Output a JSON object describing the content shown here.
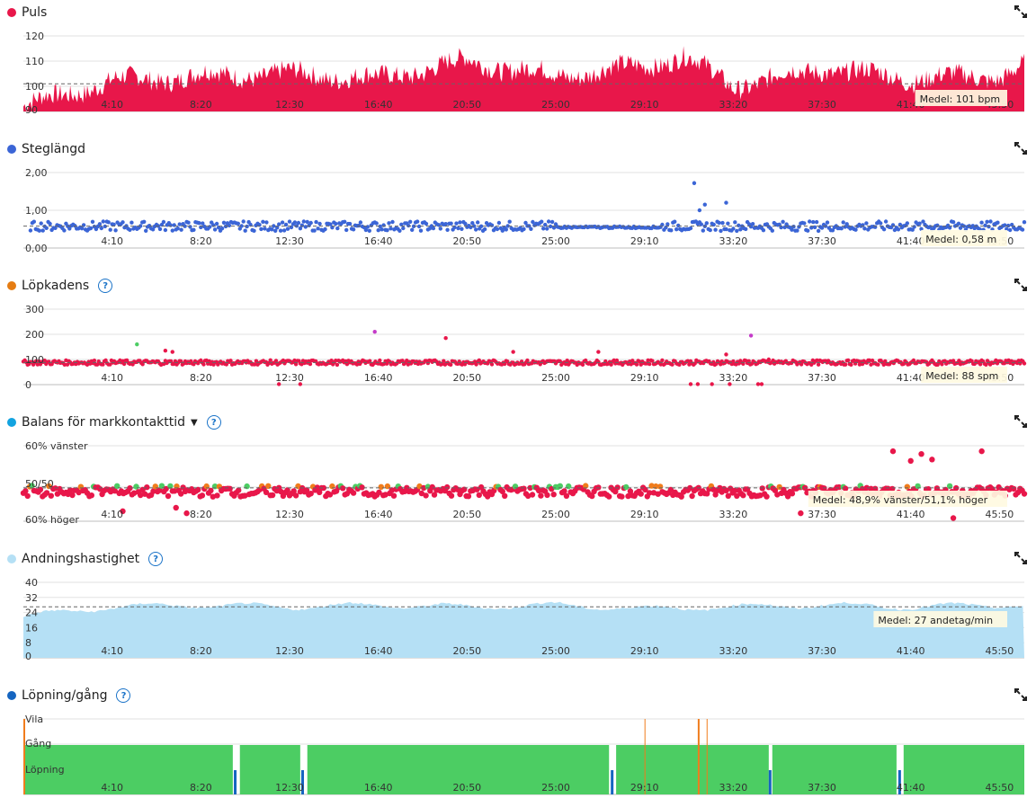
{
  "x_ticks": [
    "4:10",
    "8:20",
    "12:30",
    "16:40",
    "20:50",
    "25:00",
    "29:10",
    "33:20",
    "37:30",
    "41:40",
    "45:50"
  ],
  "colors": {
    "puls": "#e8174a",
    "steglangd": "#3b65d6",
    "lopkadens": "#e57c12",
    "balans": "#12a3e0",
    "andning": "#b5e0f5",
    "lopning": "#1565c0",
    "green": "#4ccd63",
    "orange": "#f07c1c",
    "grid": "#e2e2e2"
  },
  "panels": {
    "puls": {
      "title": "Puls",
      "avg": "Medel: 101 bpm",
      "y_ticks": [
        "120",
        "110",
        "100",
        "90"
      ]
    },
    "steglangd": {
      "title": "Steglängd",
      "avg": "Medel: 0,58 m",
      "y_ticks": [
        "2,00",
        "1,00",
        "0,00"
      ]
    },
    "lopkadens": {
      "title": "Löpkadens",
      "avg": "Medel: 88 spm",
      "y_ticks": [
        "300",
        "200",
        "100",
        "0"
      ]
    },
    "balans": {
      "title": "Balans för markkontakttid",
      "avg": "Medel: 48,9% vänster/51,1% höger",
      "y_ticks": [
        "60% vänster",
        "50/50",
        "60% höger"
      ]
    },
    "andning": {
      "title": "Andningshastighet",
      "avg": "Medel: 27 andetag/min",
      "y_ticks": [
        "40",
        "32",
        "24",
        "16",
        "8",
        "0"
      ]
    },
    "lopning": {
      "title": "Löpning/gång",
      "y_ticks": [
        "Vila",
        "Gång",
        "Löpning"
      ]
    }
  },
  "chart_data": [
    {
      "type": "area",
      "title": "Puls",
      "ylabel": "bpm",
      "ylim": [
        90,
        125
      ],
      "x": [
        "0:00",
        "4:10",
        "8:20",
        "12:30",
        "16:40",
        "20:50",
        "25:00",
        "29:10",
        "31:00",
        "33:20",
        "37:30",
        "41:40",
        "45:50",
        "47:00"
      ],
      "series": [
        {
          "name": "Puls",
          "values": [
            92,
            102,
            104,
            105,
            103,
            110,
            104,
            108,
            112,
            100,
            107,
            103,
            104,
            108
          ]
        }
      ],
      "average": 101,
      "grid": true
    },
    {
      "type": "scatter",
      "title": "Steglängd",
      "ylabel": "m",
      "ylim": [
        0,
        2.4
      ],
      "x": [
        "4:10",
        "8:20",
        "12:30",
        "16:40",
        "20:50",
        "25:00",
        "29:10",
        "31:30",
        "33:00",
        "37:30",
        "41:40",
        "45:50"
      ],
      "series": [
        {
          "name": "Steglängd",
          "values": [
            0.6,
            0.57,
            0.6,
            0.58,
            0.57,
            0.58,
            0.55,
            1.72,
            1.15,
            0.6,
            0.62,
            0.7
          ]
        }
      ],
      "average": 0.58,
      "grid": true
    },
    {
      "type": "scatter",
      "title": "Löpkadens",
      "ylabel": "spm",
      "ylim": [
        0,
        320
      ],
      "x": [
        "4:10",
        "8:20",
        "12:30",
        "16:40",
        "20:50",
        "25:00",
        "29:10",
        "33:20",
        "37:30",
        "41:40",
        "45:50"
      ],
      "series": [
        {
          "name": "Löpkadens",
          "values": [
            88,
            85,
            90,
            88,
            86,
            89,
            87,
            88,
            89,
            90,
            88
          ]
        }
      ],
      "average": 88,
      "grid": true
    },
    {
      "type": "scatter",
      "title": "Balans för markkontakttid",
      "ylim": [
        -60,
        60
      ],
      "x": [
        "4:10",
        "8:20",
        "12:30",
        "16:40",
        "20:50",
        "25:00",
        "29:10",
        "33:20",
        "37:30",
        "41:40",
        "45:50"
      ],
      "series": [
        {
          "name": "Balans",
          "values": [
            -49,
            -50,
            -49.5,
            -49,
            -51,
            -49.5,
            -48,
            -49,
            -51,
            -48.5,
            -50
          ]
        }
      ],
      "average_left_pct": 48.9,
      "average_right_pct": 51.1,
      "grid": true
    },
    {
      "type": "area",
      "title": "Andningshastighet",
      "ylabel": "andetag/min",
      "ylim": [
        0,
        40
      ],
      "x": [
        "0:00",
        "4:10",
        "8:20",
        "12:30",
        "16:40",
        "20:50",
        "25:00",
        "29:10",
        "33:20",
        "37:30",
        "41:40",
        "45:50",
        "47:00"
      ],
      "series": [
        {
          "name": "Andningshastighet",
          "values": [
            22,
            27,
            28,
            27,
            28,
            27,
            28,
            26,
            27,
            28,
            27,
            28,
            28
          ]
        }
      ],
      "average": 27,
      "grid": true
    },
    {
      "type": "bar",
      "title": "Löpning/gång",
      "categories": [
        "Vila",
        "Gång",
        "Löpning"
      ],
      "segments": [
        {
          "start": "0:00",
          "end": "9:50",
          "state": "Löpning"
        },
        {
          "start": "10:10",
          "end": "13:00",
          "state": "Löpning"
        },
        {
          "start": "13:20",
          "end": "27:30",
          "state": "Löpning"
        },
        {
          "start": "27:50",
          "end": "35:00",
          "state": "Löpning"
        },
        {
          "start": "35:10",
          "end": "41:00",
          "state": "Löpning"
        },
        {
          "start": "41:20",
          "end": "47:00",
          "state": "Löpning"
        }
      ],
      "grid": true
    }
  ]
}
